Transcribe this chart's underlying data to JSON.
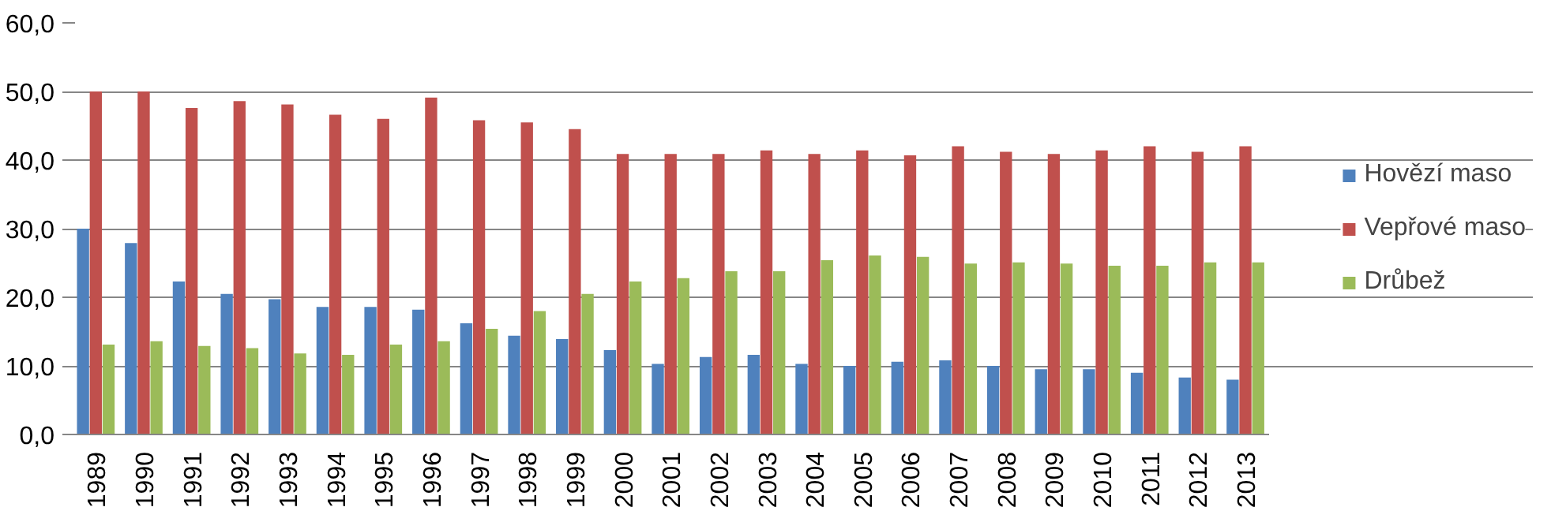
{
  "chart_data": {
    "type": "bar",
    "categories": [
      "1989",
      "1990",
      "1991",
      "1992",
      "1993",
      "1994",
      "1995",
      "1996",
      "1997",
      "1998",
      "1999",
      "2000",
      "2001",
      "2002",
      "2003",
      "2004",
      "2005",
      "2006",
      "2007",
      "2008",
      "2009",
      "2010",
      "2011",
      "2012",
      "2013"
    ],
    "series": [
      {
        "name": "Hovězí maso",
        "color": "#4f81bd",
        "values": [
          30.0,
          27.9,
          22.3,
          20.5,
          19.7,
          18.6,
          18.6,
          18.2,
          16.2,
          14.4,
          13.9,
          12.3,
          10.3,
          11.3,
          11.6,
          10.3,
          10.0,
          10.6,
          10.8,
          10.0,
          9.5,
          9.5,
          9.0,
          8.3,
          8.0
        ]
      },
      {
        "name": "Vepřové maso",
        "color": "#c0504d",
        "values": [
          50.0,
          50.0,
          47.6,
          48.6,
          48.1,
          46.6,
          46.0,
          49.1,
          45.8,
          45.5,
          44.5,
          40.9,
          40.9,
          40.9,
          41.4,
          40.9,
          41.4,
          40.7,
          42.0,
          41.2,
          40.9,
          41.4,
          42.0,
          41.2,
          42.0
        ]
      },
      {
        "name": "Drůbež",
        "color": "#9bbb59",
        "values": [
          13.1,
          13.6,
          12.9,
          12.6,
          11.8,
          11.6,
          13.1,
          13.6,
          15.4,
          18.0,
          20.5,
          22.3,
          22.8,
          23.8,
          23.8,
          25.4,
          26.1,
          25.9,
          24.9,
          25.1,
          24.9,
          24.6,
          24.6,
          25.1,
          25.1
        ]
      }
    ],
    "ylim": [
      0,
      60
    ],
    "yticks": [
      {
        "value": 0,
        "label": "0,0"
      },
      {
        "value": 10,
        "label": "10,0"
      },
      {
        "value": 20,
        "label": "20,0"
      },
      {
        "value": 30,
        "label": "30,0"
      },
      {
        "value": 40,
        "label": "40,0"
      },
      {
        "value": 50,
        "label": "50,0"
      },
      {
        "value": 60,
        "label": "60,0"
      }
    ],
    "grid": "y",
    "legend": "right"
  }
}
